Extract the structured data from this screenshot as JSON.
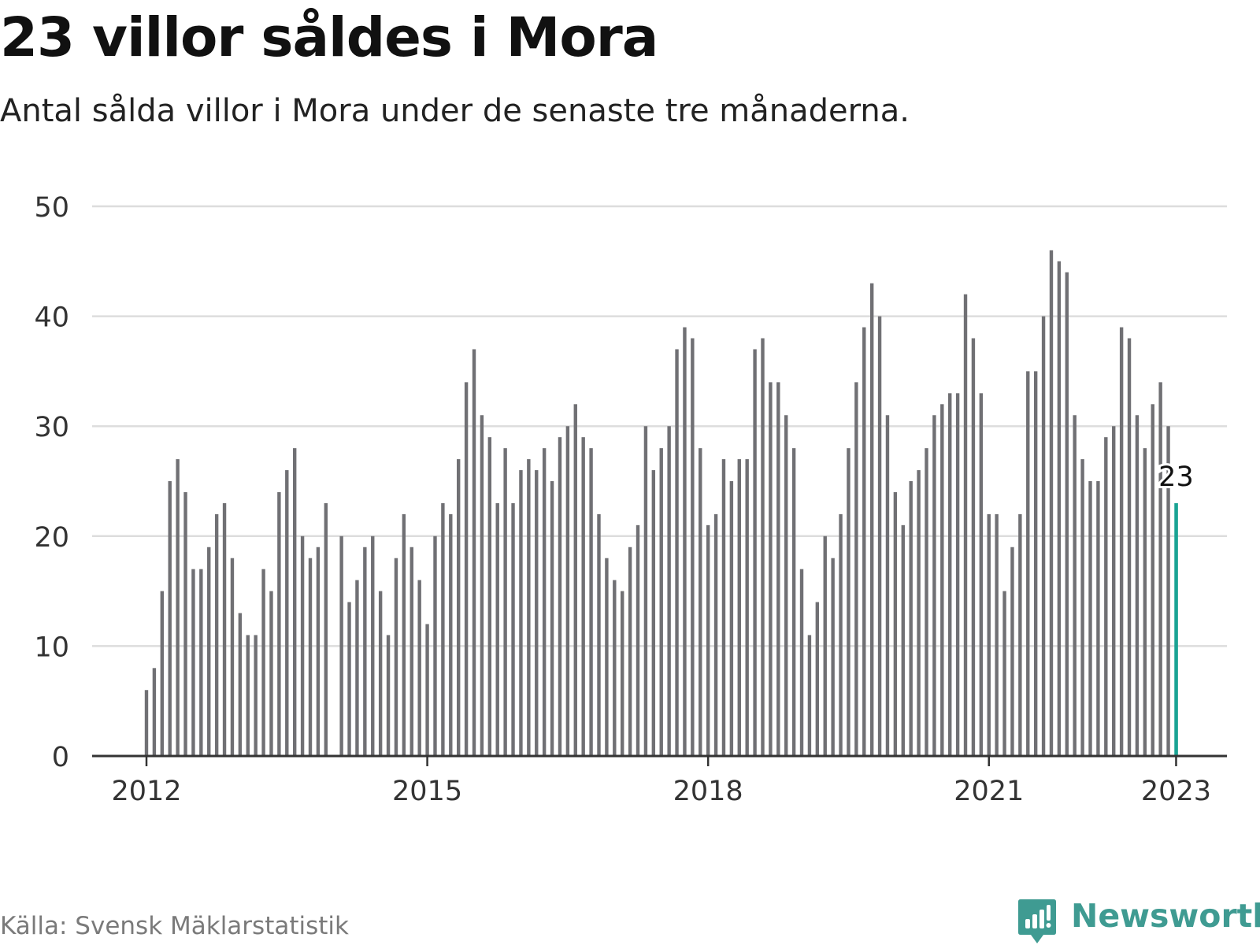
{
  "header": {
    "title": "23 villor såldes i Mora",
    "subtitle": "Antal sålda villor i Mora under de senaste tre månaderna."
  },
  "footer": {
    "source": "Källa: Svensk Mäklarstatistik",
    "brand": "Newsworthy",
    "brand_icon": "bar-chart-speech-bubble-icon"
  },
  "colors": {
    "bar": "#707074",
    "highlight": "#1aa394",
    "grid": "#dddddd",
    "brand": "#3f9b92"
  },
  "chart_data": {
    "type": "bar",
    "title": "23 villor såldes i Mora",
    "subtitle": "Antal sålda villor i Mora under de senaste tre månaderna.",
    "xlabel": "",
    "ylabel": "",
    "ylim": [
      0,
      50
    ],
    "yticks": [
      0,
      10,
      20,
      30,
      40,
      50
    ],
    "xticks": [
      {
        "label": "2012",
        "index": 0
      },
      {
        "label": "2015",
        "index": 36
      },
      {
        "label": "2018",
        "index": 72
      },
      {
        "label": "2021",
        "index": 108
      },
      {
        "label": "2023",
        "index": 132
      }
    ],
    "grid": true,
    "start": "2012-01",
    "frequency": "monthly",
    "values": [
      6,
      8,
      15,
      25,
      27,
      24,
      17,
      17,
      19,
      22,
      23,
      18,
      13,
      11,
      11,
      17,
      15,
      24,
      26,
      28,
      20,
      18,
      19,
      23,
      null,
      20,
      14,
      16,
      19,
      20,
      15,
      11,
      18,
      22,
      19,
      16,
      12,
      20,
      23,
      22,
      27,
      34,
      37,
      31,
      29,
      23,
      28,
      23,
      26,
      27,
      26,
      28,
      25,
      29,
      30,
      32,
      29,
      28,
      22,
      18,
      16,
      15,
      19,
      21,
      30,
      26,
      28,
      30,
      37,
      39,
      38,
      28,
      21,
      22,
      27,
      25,
      27,
      27,
      37,
      38,
      34,
      34,
      31,
      28,
      17,
      11,
      14,
      20,
      18,
      22,
      28,
      34,
      39,
      43,
      40,
      31,
      24,
      21,
      25,
      26,
      28,
      31,
      32,
      33,
      33,
      42,
      38,
      33,
      22,
      22,
      15,
      19,
      22,
      35,
      35,
      40,
      46,
      45,
      44,
      31,
      27,
      25,
      25,
      29,
      30,
      39,
      38,
      31,
      28,
      32,
      34,
      30,
      23
    ],
    "highlight": {
      "index": 132,
      "label": "23"
    }
  }
}
